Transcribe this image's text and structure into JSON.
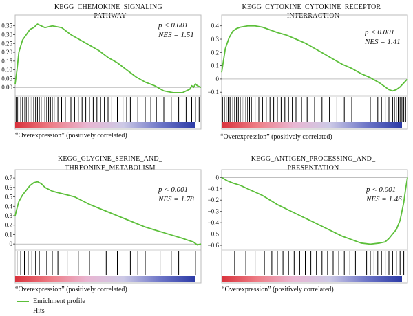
{
  "chart_data": [
    {
      "type": "line",
      "title": "KEGG_CHEMOKINE_SIGNALING_PATHWAY",
      "title_lines": [
        "KEGG_CHEMOKINE_SIGNALING_",
        "PATHWAY"
      ],
      "stats": {
        "p": "p < 0.001",
        "nes": "NES = 1.51"
      },
      "footer": "“Overexpression” (positively correlated)",
      "ylim": [
        -0.05,
        0.38
      ],
      "yticks": [
        0,
        0.05,
        0.1,
        0.15,
        0.2,
        0.25,
        0.3,
        0.35
      ],
      "ytick_labels": [
        "0.00",
        "0.05",
        "0.10",
        "0.15",
        "0.20",
        "0.25",
        "0.30",
        "0.35"
      ],
      "series": [
        {
          "x": [
            0,
            0.01,
            0.02,
            0.04,
            0.06,
            0.08,
            0.1,
            0.12,
            0.14,
            0.16,
            0.2,
            0.25,
            0.3,
            0.35,
            0.4,
            0.45,
            0.5,
            0.55,
            0.6,
            0.65,
            0.7,
            0.75,
            0.8,
            0.85,
            0.9,
            0.92,
            0.94,
            0.95,
            0.96,
            0.97,
            0.98,
            1.0
          ],
          "y": [
            0.02,
            0.1,
            0.2,
            0.27,
            0.3,
            0.33,
            0.34,
            0.36,
            0.35,
            0.34,
            0.35,
            0.34,
            0.3,
            0.27,
            0.24,
            0.21,
            0.17,
            0.14,
            0.1,
            0.06,
            0.03,
            0.01,
            -0.02,
            -0.03,
            -0.03,
            -0.02,
            -0.01,
            0.01,
            0.0,
            0.02,
            0.01,
            0.0
          ]
        }
      ],
      "hits": [
        0.005,
        0.012,
        0.02,
        0.03,
        0.04,
        0.052,
        0.06,
        0.07,
        0.08,
        0.09,
        0.1,
        0.11,
        0.12,
        0.13,
        0.14,
        0.15,
        0.16,
        0.17,
        0.18,
        0.19,
        0.2,
        0.21,
        0.23,
        0.25,
        0.27,
        0.3,
        0.32,
        0.34,
        0.36,
        0.38,
        0.4,
        0.42,
        0.44,
        0.46,
        0.48,
        0.5,
        0.52,
        0.55,
        0.58,
        0.6,
        0.62,
        0.66,
        0.7,
        0.73,
        0.76,
        0.8,
        0.84,
        0.88,
        0.92,
        0.95,
        0.97,
        0.99
      ],
      "hits_ylim": [
        0,
        1
      ]
    },
    {
      "type": "line",
      "title": "KEGG_CYTOKINE_CYTOKINE_RECEPTOR_INTERRACTION",
      "title_lines": [
        "KEGG_CYTOKINE_CYTOKINE_RECEPTOR_",
        "INTERRACTION"
      ],
      "stats": {
        "p": "p < 0.001",
        "nes": "NES = 1.41"
      },
      "footer": "“Overexpression” (positively correlated)",
      "ylim": [
        -0.13,
        0.44
      ],
      "yticks": [
        -0.1,
        0,
        0.1,
        0.2,
        0.3,
        0.4
      ],
      "ytick_labels": [
        "−0.1",
        "0",
        "0.1",
        "0.2",
        "0.3",
        "0.4"
      ],
      "series": [
        {
          "x": [
            0,
            0.02,
            0.04,
            0.06,
            0.08,
            0.1,
            0.14,
            0.18,
            0.22,
            0.26,
            0.3,
            0.35,
            0.4,
            0.45,
            0.5,
            0.55,
            0.6,
            0.65,
            0.7,
            0.75,
            0.8,
            0.85,
            0.88,
            0.9,
            0.92,
            0.94,
            0.96,
            1.0
          ],
          "y": [
            0.05,
            0.23,
            0.31,
            0.36,
            0.38,
            0.39,
            0.4,
            0.4,
            0.39,
            0.37,
            0.35,
            0.33,
            0.3,
            0.27,
            0.23,
            0.19,
            0.15,
            0.11,
            0.08,
            0.04,
            0.01,
            -0.03,
            -0.06,
            -0.08,
            -0.09,
            -0.08,
            -0.06,
            0.0
          ]
        }
      ],
      "hits": [
        0.005,
        0.015,
        0.025,
        0.035,
        0.045,
        0.06,
        0.07,
        0.08,
        0.09,
        0.1,
        0.11,
        0.12,
        0.13,
        0.14,
        0.15,
        0.16,
        0.18,
        0.2,
        0.22,
        0.24,
        0.26,
        0.28,
        0.3,
        0.32,
        0.34,
        0.36,
        0.38,
        0.4,
        0.43,
        0.46,
        0.5,
        0.54,
        0.58,
        0.62,
        0.66,
        0.7,
        0.75,
        0.8,
        0.84,
        0.86,
        0.88,
        0.9,
        0.92,
        0.93,
        0.94,
        0.95,
        0.96,
        0.97,
        0.98,
        0.99
      ],
      "hits_ylim": [
        0,
        1
      ]
    },
    {
      "type": "line",
      "title": "KEGG_GLYCINE_SERINE_AND_THREONINE_METABOLISM",
      "title_lines": [
        "KEGG_GLYCINE_SERINE_AND_",
        "THREONINE_METABOLISM"
      ],
      "stats": {
        "p": "p < 0.001",
        "nes": "NES = 1.78"
      },
      "footer": "“Overexpression” (positively correlated)",
      "ylim": [
        -0.05,
        0.73
      ],
      "yticks": [
        0,
        0.1,
        0.2,
        0.3,
        0.4,
        0.5,
        0.6,
        0.7
      ],
      "ytick_labels": [
        "0",
        "0.1",
        "0.2",
        "0.3",
        "0.4",
        "0.5",
        "0.6",
        "0.7"
      ],
      "series": [
        {
          "x": [
            0,
            0.01,
            0.02,
            0.04,
            0.06,
            0.08,
            0.1,
            0.12,
            0.14,
            0.16,
            0.18,
            0.2,
            0.22,
            0.24,
            0.28,
            0.32,
            0.36,
            0.4,
            0.45,
            0.5,
            0.55,
            0.6,
            0.65,
            0.7,
            0.75,
            0.8,
            0.85,
            0.9,
            0.93,
            0.96,
            0.98,
            1.0
          ],
          "y": [
            0.3,
            0.38,
            0.45,
            0.52,
            0.57,
            0.62,
            0.65,
            0.66,
            0.64,
            0.6,
            0.58,
            0.56,
            0.55,
            0.54,
            0.52,
            0.5,
            0.46,
            0.42,
            0.38,
            0.34,
            0.3,
            0.26,
            0.22,
            0.18,
            0.15,
            0.12,
            0.09,
            0.06,
            0.04,
            0.02,
            -0.01,
            0.0
          ]
        }
      ],
      "hits": [
        0.01,
        0.03,
        0.05,
        0.07,
        0.09,
        0.11,
        0.13,
        0.15,
        0.17,
        0.2,
        0.23,
        0.28,
        0.34,
        0.4,
        0.49,
        0.55,
        0.62,
        0.66,
        0.7,
        0.78,
        0.84,
        0.88,
        0.97
      ],
      "hits_ylim": [
        0,
        1
      ]
    },
    {
      "type": "line",
      "title": "KEGG_ANTIGEN_PROCESSING_AND_PRESENTATION",
      "title_lines": [
        "KEGG_ANTIGEN_PROCESSING_AND_",
        "PRESENTATION"
      ],
      "stats": {
        "p": "p < 0.001",
        "nes": "NES = 1.46"
      },
      "footer": "“Overexpression” (positively correlated)",
      "ylim": [
        -0.63,
        0.02
      ],
      "yticks": [
        0,
        -0.1,
        -0.2,
        -0.3,
        -0.4,
        -0.5,
        -0.6
      ],
      "ytick_labels": [
        "0",
        "−0.1",
        "−0.2",
        "−0.3",
        "−0.4",
        "−0.5",
        "−0.6"
      ],
      "series": [
        {
          "x": [
            0,
            0.03,
            0.06,
            0.1,
            0.14,
            0.18,
            0.22,
            0.26,
            0.3,
            0.35,
            0.4,
            0.45,
            0.5,
            0.55,
            0.6,
            0.65,
            0.7,
            0.75,
            0.8,
            0.85,
            0.88,
            0.9,
            0.92,
            0.94,
            0.95,
            0.96,
            0.97,
            0.98,
            0.99,
            1.0
          ],
          "y": [
            0.0,
            -0.03,
            -0.05,
            -0.07,
            -0.1,
            -0.13,
            -0.16,
            -0.2,
            -0.24,
            -0.28,
            -0.32,
            -0.36,
            -0.4,
            -0.44,
            -0.48,
            -0.52,
            -0.55,
            -0.58,
            -0.59,
            -0.58,
            -0.57,
            -0.54,
            -0.5,
            -0.46,
            -0.42,
            -0.38,
            -0.3,
            -0.22,
            -0.1,
            0.0
          ]
        }
      ],
      "hits": [
        0.07,
        0.13,
        0.18,
        0.23,
        0.27,
        0.3,
        0.33,
        0.36,
        0.39,
        0.42,
        0.45,
        0.48,
        0.51,
        0.54,
        0.57,
        0.6,
        0.63,
        0.66,
        0.69,
        0.72,
        0.75,
        0.78,
        0.8,
        0.82,
        0.84,
        0.86,
        0.88,
        0.9,
        0.92,
        0.94,
        0.96,
        0.98
      ],
      "hits_ylim": [
        0,
        1
      ]
    }
  ],
  "legend": [
    {
      "label": "Enrichment profile",
      "color": "#5cbf3a"
    },
    {
      "label": "Hits",
      "color": "#000000"
    }
  ],
  "colors": {
    "curve": "#5cbf3a",
    "gradient": [
      "#d9323c",
      "#ee7e87",
      "#e9b6d2",
      "#ccc9e6",
      "#6f77c8",
      "#2b3aa6"
    ]
  }
}
